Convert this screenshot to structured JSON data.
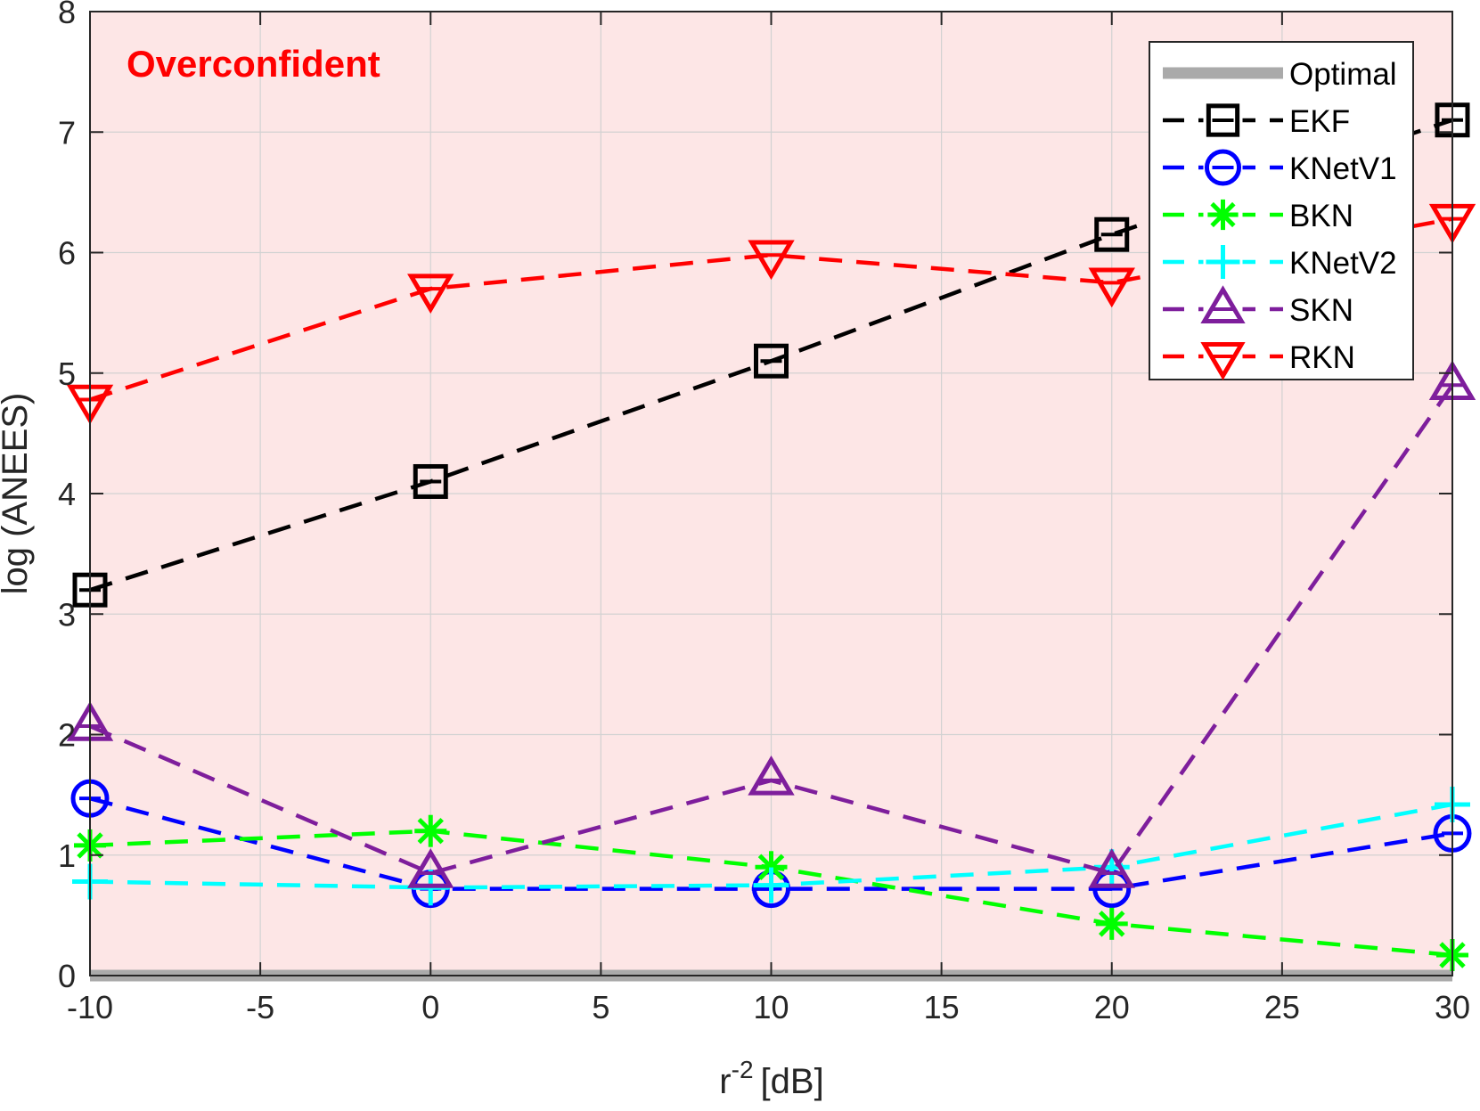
{
  "chart_data": {
    "type": "line",
    "title": "",
    "annotation": "Overconfident",
    "xlabel_base": "r",
    "xlabel_sup": "-2",
    "xlabel_unit": "[dB]",
    "ylabel": "log (ANEES)",
    "xlim": [
      -10,
      30
    ],
    "ylim": [
      0,
      8
    ],
    "xticks": [
      "-10",
      "-5",
      "0",
      "5",
      "10",
      "15",
      "20",
      "25",
      "30"
    ],
    "yticks": [
      "0",
      "1",
      "2",
      "3",
      "4",
      "5",
      "6",
      "7",
      "8"
    ],
    "grid": true,
    "legend_position": "top-right",
    "x": [
      -10,
      0,
      10,
      20,
      30
    ],
    "series": [
      {
        "name": "Optimal",
        "values": [
          0,
          0,
          0,
          0,
          0
        ],
        "color": "#aaaaaa",
        "marker": "none",
        "style": "solid"
      },
      {
        "name": "EKF",
        "values": [
          3.2,
          4.1,
          5.1,
          6.15,
          7.1
        ],
        "color": "#000000",
        "marker": "square",
        "style": "dashed"
      },
      {
        "name": "KNetV1",
        "values": [
          1.47,
          0.72,
          0.72,
          0.72,
          1.18
        ],
        "color": "#0000ff",
        "marker": "circle",
        "style": "dashed"
      },
      {
        "name": "BKN",
        "values": [
          1.08,
          1.2,
          0.9,
          0.43,
          0.17
        ],
        "color": "#00ff00",
        "marker": "asterisk",
        "style": "dashed"
      },
      {
        "name": "KNetV2",
        "values": [
          0.78,
          0.73,
          0.75,
          0.9,
          1.42
        ],
        "color": "#00ffff",
        "marker": "plus",
        "style": "dashed"
      },
      {
        "name": "SKN",
        "values": [
          2.07,
          0.85,
          1.62,
          0.85,
          4.9
        ],
        "color": "#7e1e9c",
        "marker": "triangle-up",
        "style": "dashed"
      },
      {
        "name": "RKN",
        "values": [
          4.78,
          5.7,
          5.98,
          5.75,
          6.28
        ],
        "color": "#ff0000",
        "marker": "triangle-down",
        "style": "dashed"
      }
    ]
  }
}
